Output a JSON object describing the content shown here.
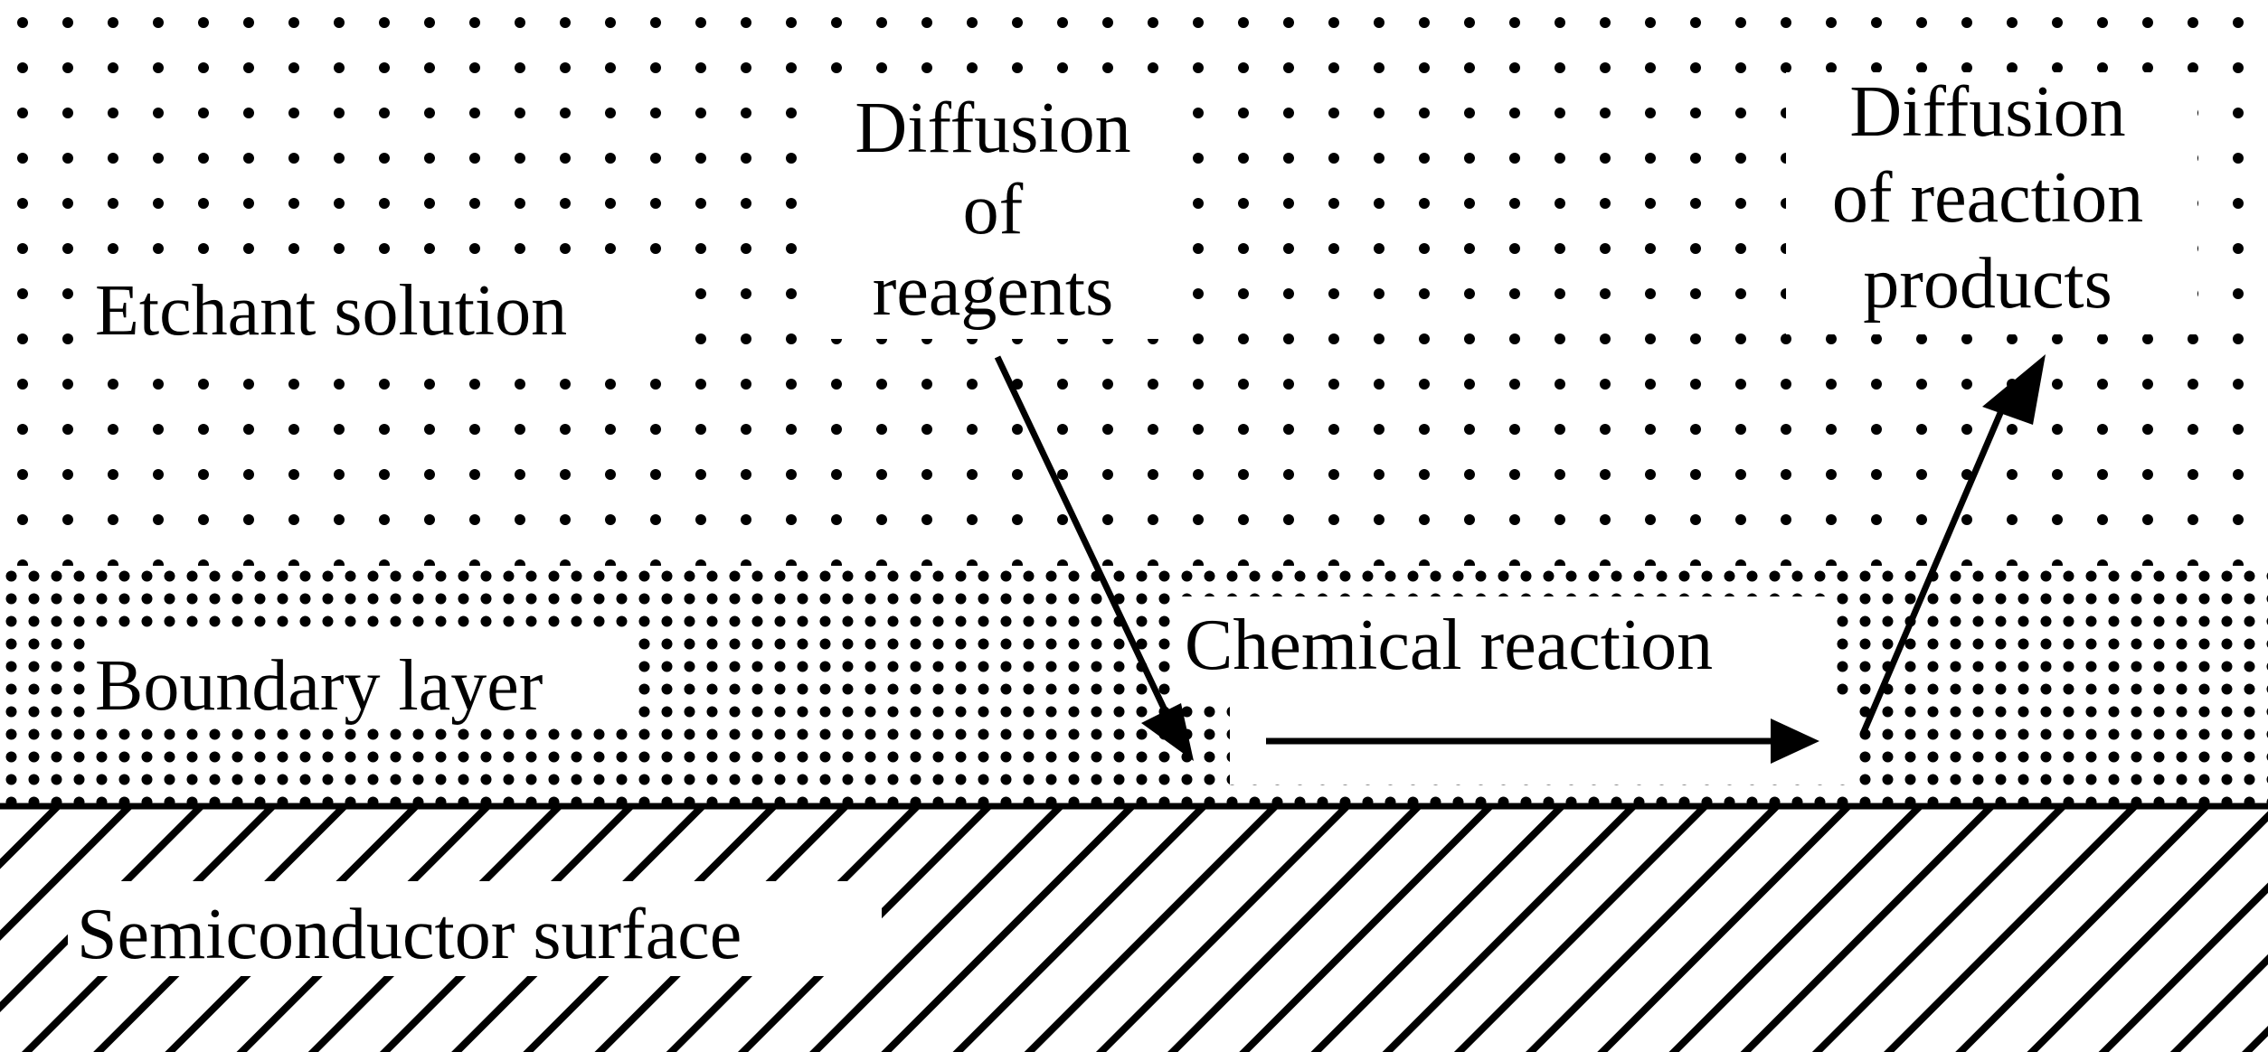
{
  "regions": {
    "etchant": "Etchant solution",
    "boundary": "Boundary layer",
    "surface": "Semiconductor surface"
  },
  "processes": {
    "reagents": [
      "Diffusion",
      "of",
      "reagents"
    ],
    "reaction": "Chemical reaction",
    "products": [
      "Diffusion",
      "of reaction",
      "products"
    ]
  },
  "colors": {
    "ink": "#000000",
    "background": "#ffffff"
  }
}
